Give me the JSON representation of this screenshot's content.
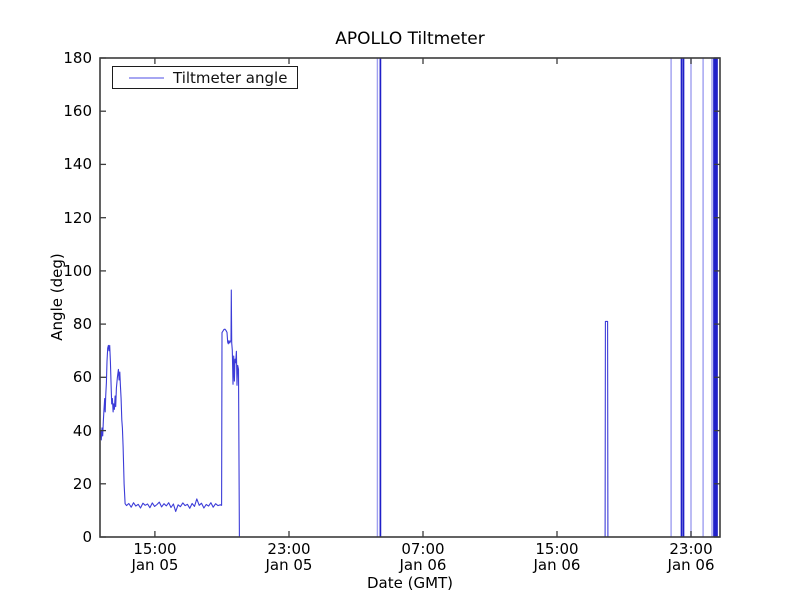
{
  "title": "APOLLO Tiltmeter",
  "xlabel": "Date (GMT)",
  "ylabel": "Angle (deg)",
  "legend": {
    "label": "Tiltmeter angle"
  },
  "colors": {
    "line": "#3c3cd8",
    "line_light": "#9f9ff0",
    "line_dark": "#2020c8",
    "frame": "#3c3c3c",
    "background": "#ffffff",
    "text": "#000000"
  },
  "chart_data": {
    "type": "line",
    "title": "APOLLO Tiltmeter",
    "xlabel": "Date (GMT)",
    "ylabel": "Angle (deg)",
    "grid": false,
    "legend_position": "upper left",
    "legend_entries": [
      "Tiltmeter angle"
    ],
    "x_units": "hours since Jan 05 00:00 GMT",
    "xlim": [
      11.72,
      48.73
    ],
    "ylim": [
      0,
      180
    ],
    "yticks": [
      0,
      20,
      40,
      60,
      80,
      100,
      120,
      140,
      160,
      180
    ],
    "xticks": [
      {
        "t": 15,
        "time": "15:00",
        "date": "Jan 05"
      },
      {
        "t": 23,
        "time": "23:00",
        "date": "Jan 05"
      },
      {
        "t": 31,
        "time": "07:00",
        "date": "Jan 06"
      },
      {
        "t": 39,
        "time": "15:00",
        "date": "Jan 06"
      },
      {
        "t": 47,
        "time": "23:00",
        "date": "Jan 06"
      }
    ],
    "series": [
      {
        "name": "Tiltmeter angle",
        "color_role": "line",
        "points": [
          [
            11.72,
            38
          ],
          [
            11.76,
            40
          ],
          [
            11.8,
            36.5
          ],
          [
            11.84,
            41
          ],
          [
            11.88,
            38
          ],
          [
            11.92,
            44
          ],
          [
            11.96,
            48
          ],
          [
            12.0,
            52
          ],
          [
            12.03,
            47
          ],
          [
            12.06,
            53
          ],
          [
            12.1,
            58
          ],
          [
            12.14,
            66
          ],
          [
            12.18,
            71
          ],
          [
            12.22,
            72
          ],
          [
            12.26,
            70
          ],
          [
            12.3,
            72
          ],
          [
            12.34,
            66
          ],
          [
            12.38,
            57
          ],
          [
            12.42,
            50
          ],
          [
            12.46,
            52
          ],
          [
            12.5,
            47
          ],
          [
            12.54,
            50
          ],
          [
            12.58,
            48
          ],
          [
            12.62,
            53
          ],
          [
            12.66,
            49
          ],
          [
            12.7,
            56
          ],
          [
            12.76,
            60
          ],
          [
            12.82,
            63
          ],
          [
            12.86,
            59
          ],
          [
            12.9,
            62
          ],
          [
            12.94,
            57
          ],
          [
            12.98,
            52
          ],
          [
            13.02,
            44
          ],
          [
            13.06,
            41
          ],
          [
            13.1,
            34
          ],
          [
            13.16,
            20
          ],
          [
            13.22,
            12.5
          ],
          [
            13.3,
            11.8
          ],
          [
            13.44,
            12.6
          ],
          [
            13.58,
            11.2
          ],
          [
            13.72,
            12.9
          ],
          [
            13.86,
            11.6
          ],
          [
            14.0,
            12.3
          ],
          [
            14.14,
            10.9
          ],
          [
            14.28,
            12.7
          ],
          [
            14.42,
            11.9
          ],
          [
            14.56,
            12.4
          ],
          [
            14.7,
            11.0
          ],
          [
            14.84,
            12.8
          ],
          [
            14.98,
            11.5
          ],
          [
            15.12,
            12.2
          ],
          [
            15.26,
            13.1
          ],
          [
            15.4,
            11.3
          ],
          [
            15.54,
            12.5
          ],
          [
            15.68,
            11.7
          ],
          [
            15.82,
            12.9
          ],
          [
            15.96,
            11.1
          ],
          [
            16.1,
            12.4
          ],
          [
            16.24,
            9.6
          ],
          [
            16.38,
            12.1
          ],
          [
            16.52,
            11.4
          ],
          [
            16.66,
            12.8
          ],
          [
            16.8,
            11.8
          ],
          [
            16.94,
            12.3
          ],
          [
            17.08,
            10.8
          ],
          [
            17.22,
            12.6
          ],
          [
            17.36,
            11.5
          ],
          [
            17.5,
            14.3
          ],
          [
            17.64,
            11.9
          ],
          [
            17.78,
            12.7
          ],
          [
            17.92,
            10.9
          ],
          [
            18.06,
            12.2
          ],
          [
            18.2,
            11.6
          ],
          [
            18.34,
            12.9
          ],
          [
            18.48,
            11.2
          ],
          [
            18.62,
            12.5
          ],
          [
            18.76,
            11.8
          ],
          [
            18.9,
            12.1
          ],
          [
            18.98,
            11.9
          ],
          [
            19.0,
            76.8
          ],
          [
            19.06,
            77.4
          ],
          [
            19.12,
            78.0
          ],
          [
            19.18,
            78.1
          ],
          [
            19.24,
            77.6
          ],
          [
            19.3,
            76.9
          ],
          [
            19.34,
            73.2
          ],
          [
            19.38,
            72.6
          ],
          [
            19.42,
            73.8
          ],
          [
            19.46,
            72.9
          ],
          [
            19.5,
            73.4
          ],
          [
            19.54,
            74.0
          ],
          [
            19.56,
            92.8
          ],
          [
            19.58,
            73.0
          ],
          [
            19.62,
            70.2
          ],
          [
            19.66,
            57.4
          ],
          [
            19.7,
            68.0
          ],
          [
            19.74,
            58.6
          ],
          [
            19.78,
            66.8
          ],
          [
            19.82,
            65.5
          ],
          [
            19.86,
            69.8
          ],
          [
            19.9,
            57.0
          ],
          [
            19.94,
            64.5
          ],
          [
            19.99,
            63.0
          ],
          [
            20.04,
            0
          ],
          [
            41.87,
            0
          ],
          [
            41.89,
            81
          ],
          [
            42.02,
            81
          ],
          [
            42.04,
            0
          ],
          [
            48.73,
            0
          ]
        ]
      }
    ],
    "full_height_spikes": [
      {
        "t": 28.28,
        "value": 180,
        "shade": "light"
      },
      {
        "t": 28.46,
        "value": 180,
        "shade": "dark"
      },
      {
        "t": 45.81,
        "value": 180,
        "shade": "light"
      },
      {
        "t": 46.43,
        "value": 180,
        "shade": "dark"
      },
      {
        "t": 46.55,
        "value": 180,
        "shade": "dark"
      },
      {
        "t": 47.0,
        "value": 180,
        "shade": "light"
      },
      {
        "t": 47.72,
        "value": 180,
        "shade": "light"
      },
      {
        "t": 48.25,
        "value": 180,
        "shade": "light"
      },
      {
        "t": 48.37,
        "value": 180,
        "shade": "dark"
      },
      {
        "t": 48.43,
        "value": 180,
        "shade": "dark"
      },
      {
        "t": 48.49,
        "value": 180,
        "shade": "dark"
      },
      {
        "t": 48.55,
        "value": 180,
        "shade": "dark"
      }
    ]
  }
}
